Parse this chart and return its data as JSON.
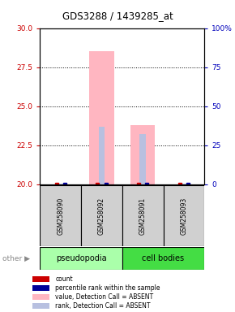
{
  "title": "GDS3288 / 1439285_at",
  "samples": [
    "GSM258090",
    "GSM258092",
    "GSM258091",
    "GSM258093"
  ],
  "ylim_left": [
    20,
    30
  ],
  "ylim_right": [
    0,
    100
  ],
  "yticks_left": [
    20,
    22.5,
    25,
    27.5,
    30
  ],
  "yticks_right": [
    0,
    25,
    50,
    75,
    100
  ],
  "ytick_right_labels": [
    "0",
    "25",
    "50",
    "75",
    "100%"
  ],
  "bar_values": [
    20.0,
    28.5,
    23.8,
    20.0
  ],
  "rank_values": [
    0.5,
    37.0,
    32.0,
    0.5
  ],
  "bar_color_absent": "#FFB6C1",
  "rank_color_absent": "#B8C0E0",
  "bar_width": 0.6,
  "rank_bar_width": 0.15,
  "group_labels": [
    "pseudopodia",
    "cell bodies"
  ],
  "group_bg_colors": [
    "#AAFFAA",
    "#44DD44"
  ],
  "legend_items": [
    {
      "label": "count",
      "color": "#CC0000"
    },
    {
      "label": "percentile rank within the sample",
      "color": "#000099"
    },
    {
      "label": "value, Detection Call = ABSENT",
      "color": "#FFB6C1"
    },
    {
      "label": "rank, Detection Call = ABSENT",
      "color": "#B8C0E0"
    }
  ],
  "right_axis_color": "#0000BB",
  "left_axis_color": "#CC0000",
  "grid_yticks": [
    22.5,
    25,
    27.5
  ],
  "sample_box_color": "#D0D0D0"
}
